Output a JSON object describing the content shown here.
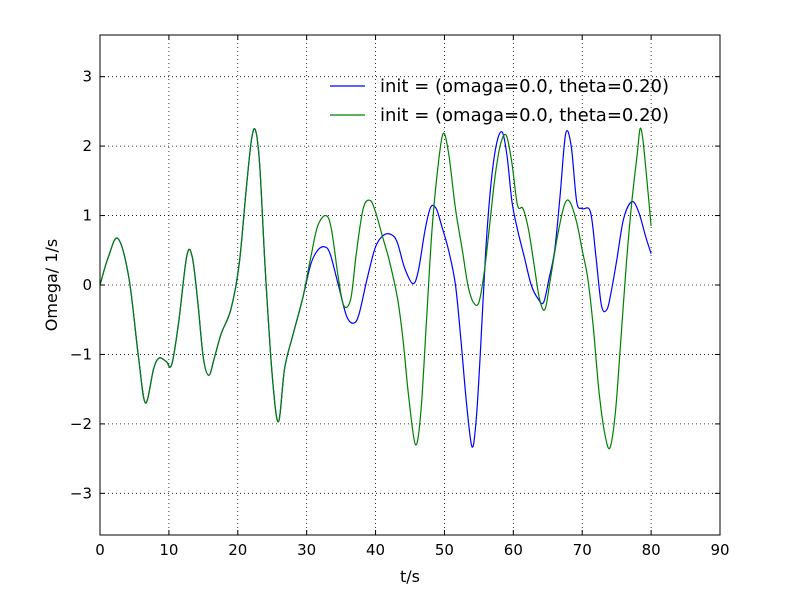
{
  "chart_data": {
    "type": "line",
    "title": "",
    "xlabel": "t/s",
    "ylabel": "Omega/ 1/s",
    "xlim": [
      0,
      90
    ],
    "ylim": [
      -3.6,
      3.6
    ],
    "x_ticks": [
      0,
      10,
      20,
      30,
      40,
      50,
      60,
      70,
      80,
      90
    ],
    "y_ticks": [
      -3,
      -2,
      -1,
      0,
      1,
      2,
      3
    ],
    "x_tick_labels": [
      "0",
      "10",
      "20",
      "30",
      "40",
      "50",
      "60",
      "70",
      "80",
      "90"
    ],
    "y_tick_labels": [
      "−3",
      "−2",
      "−1",
      "0",
      "1",
      "2",
      "3"
    ],
    "grid": true,
    "grid_style": "dotted",
    "legend_position": "top-right",
    "series": [
      {
        "name": "init = (omaga=0.0, theta=0.20)",
        "color": "#0000ff",
        "x": [
          0,
          1.2,
          2.6,
          4.2,
          5.6,
          6.6,
          7.8,
          8.6,
          9.6,
          10.4,
          11.4,
          12.6,
          13.4,
          14.2,
          15.0,
          15.8,
          16.6,
          17.6,
          19.0,
          20.2,
          21.2,
          22.0,
          22.6,
          23.2,
          24.0,
          25.0,
          25.9,
          26.8,
          28.0,
          29.4,
          30.6,
          31.6,
          32.6,
          33.4,
          34.6,
          35.8,
          36.8,
          37.6,
          38.8,
          40.0,
          41.2,
          42.4,
          43.2,
          44.2,
          45.4,
          46.2,
          47.2,
          48.0,
          48.8,
          49.6,
          50.6,
          51.6,
          52.4,
          53.2,
          54.0,
          54.6,
          55.2,
          56.0,
          56.8,
          57.6,
          58.4,
          59.1,
          59.8,
          60.6,
          61.6,
          62.6,
          63.6,
          64.4,
          65.2,
          66.0,
          66.8,
          67.6,
          68.4,
          69.2,
          70.0,
          71.2,
          72.0,
          72.8,
          73.6,
          74.2,
          75.0,
          76.0,
          77.2,
          78.2,
          79.2,
          80.0
        ],
        "values": [
          0,
          0.4,
          0.67,
          0.1,
          -1.05,
          -1.7,
          -1.2,
          -1.05,
          -1.1,
          -1.15,
          -0.55,
          0.42,
          0.4,
          -0.25,
          -1.05,
          -1.3,
          -1.05,
          -0.7,
          -0.35,
          0.3,
          1.35,
          2.1,
          2.22,
          1.7,
          0.2,
          -1.3,
          -1.97,
          -1.2,
          -0.72,
          -0.2,
          0.3,
          0.5,
          0.55,
          0.45,
          0.0,
          -0.45,
          -0.55,
          -0.42,
          0.1,
          0.55,
          0.72,
          0.72,
          0.6,
          0.25,
          0.02,
          0.2,
          0.8,
          1.12,
          1.1,
          0.85,
          0.5,
          0.0,
          -0.8,
          -1.7,
          -2.33,
          -1.95,
          -1.0,
          0.5,
          1.5,
          2.05,
          2.2,
          1.85,
          1.2,
          0.8,
          0.4,
          0.0,
          -0.2,
          -0.25,
          0.1,
          0.5,
          1.3,
          2.18,
          2.0,
          1.2,
          1.1,
          1.05,
          0.4,
          -0.3,
          -0.35,
          -0.1,
          0.35,
          0.95,
          1.2,
          1.05,
          0.7,
          0.45
        ]
      },
      {
        "name": "init = (omaga=0.0, theta=0.20)",
        "color": "#008000",
        "x": [
          0,
          1.2,
          2.6,
          4.2,
          5.6,
          6.6,
          7.8,
          8.6,
          9.6,
          10.4,
          11.4,
          12.6,
          13.4,
          14.2,
          15.0,
          15.8,
          16.6,
          17.6,
          19.0,
          20.2,
          21.2,
          22.0,
          22.6,
          23.2,
          24.0,
          25.0,
          25.9,
          26.8,
          28.0,
          29.4,
          30.6,
          31.6,
          32.8,
          33.6,
          34.6,
          35.4,
          36.4,
          37.2,
          38.2,
          39.2,
          40.0,
          41.0,
          42.0,
          43.2,
          44.0,
          44.8,
          45.8,
          46.6,
          47.4,
          48.2,
          49.0,
          49.8,
          50.6,
          51.6,
          52.6,
          53.4,
          54.2,
          55.0,
          55.8,
          56.6,
          57.4,
          58.2,
          59.0,
          59.8,
          60.6,
          61.4,
          62.2,
          63.0,
          63.8,
          64.6,
          65.4,
          66.4,
          67.4,
          68.2,
          69.2,
          70.0,
          70.8,
          71.6,
          72.4,
          73.2,
          74.0,
          74.8,
          75.6,
          76.4,
          77.2,
          78.0,
          78.4,
          78.8,
          79.4,
          80.0
        ],
        "values": [
          0,
          0.4,
          0.67,
          0.1,
          -1.05,
          -1.7,
          -1.2,
          -1.05,
          -1.1,
          -1.15,
          -0.55,
          0.42,
          0.4,
          -0.25,
          -1.05,
          -1.3,
          -1.05,
          -0.7,
          -0.35,
          0.3,
          1.35,
          2.1,
          2.22,
          1.7,
          0.2,
          -1.3,
          -1.97,
          -1.2,
          -0.72,
          -0.2,
          0.4,
          0.85,
          1.0,
          0.8,
          0.1,
          -0.3,
          -0.2,
          0.45,
          1.1,
          1.22,
          1.05,
          0.7,
          0.35,
          -0.2,
          -0.8,
          -1.6,
          -2.3,
          -1.8,
          -0.5,
          0.8,
          1.65,
          2.18,
          1.9,
          1.1,
          0.5,
          0.0,
          -0.25,
          -0.25,
          0.2,
          0.9,
          1.6,
          2.05,
          2.15,
          1.75,
          1.15,
          1.1,
          0.8,
          0.3,
          -0.2,
          -0.35,
          0.1,
          0.7,
          1.15,
          1.2,
          0.9,
          0.5,
          0.1,
          -0.6,
          -1.5,
          -2.1,
          -2.35,
          -1.85,
          -0.8,
          0.3,
          1.2,
          1.9,
          2.25,
          2.1,
          1.5,
          0.85
        ]
      }
    ]
  }
}
